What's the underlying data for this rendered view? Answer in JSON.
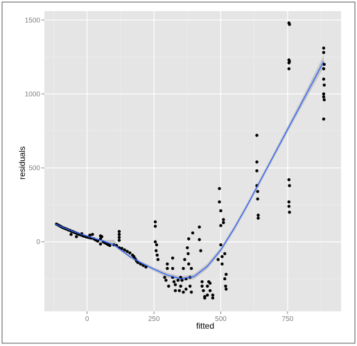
{
  "chart_data": {
    "type": "scatter",
    "title": "",
    "xlabel": "fitted",
    "ylabel": "residuals",
    "xlim": [
      -160,
      950
    ],
    "ylim": [
      -470,
      1560
    ],
    "x_ticks": [
      0,
      250,
      500,
      750
    ],
    "x_tick_labels": [
      "0",
      "250",
      "500",
      "750"
    ],
    "y_ticks": [
      0,
      500,
      1000,
      1500
    ],
    "y_tick_labels": [
      "0",
      "500",
      "1000",
      "1500"
    ],
    "grid": true,
    "legend": "none",
    "colors": {
      "panel": "#e5e5e5",
      "grid": "#ffffff",
      "points": "#000000",
      "smooth_line": "#3366ff",
      "confidence_band": "#999999"
    },
    "points": [
      {
        "x": -115,
        "y": 120
      },
      {
        "x": -110,
        "y": 115
      },
      {
        "x": -105,
        "y": 110
      },
      {
        "x": -100,
        "y": 105
      },
      {
        "x": -95,
        "y": 100
      },
      {
        "x": -90,
        "y": 95
      },
      {
        "x": -85,
        "y": 92
      },
      {
        "x": -80,
        "y": 88
      },
      {
        "x": -75,
        "y": 85
      },
      {
        "x": -70,
        "y": 80
      },
      {
        "x": -65,
        "y": 78
      },
      {
        "x": -60,
        "y": 72
      },
      {
        "x": -55,
        "y": 70
      },
      {
        "x": -50,
        "y": 66
      },
      {
        "x": -45,
        "y": 62
      },
      {
        "x": -40,
        "y": 58
      },
      {
        "x": -35,
        "y": 55
      },
      {
        "x": -30,
        "y": 50
      },
      {
        "x": -25,
        "y": 48
      },
      {
        "x": -20,
        "y": 45
      },
      {
        "x": -15,
        "y": 40
      },
      {
        "x": -10,
        "y": 38
      },
      {
        "x": -5,
        "y": 35
      },
      {
        "x": 0,
        "y": 32
      },
      {
        "x": 5,
        "y": 30
      },
      {
        "x": 10,
        "y": 28
      },
      {
        "x": 15,
        "y": 25
      },
      {
        "x": 20,
        "y": 50
      },
      {
        "x": 25,
        "y": 20
      },
      {
        "x": 30,
        "y": 15
      },
      {
        "x": 35,
        "y": 10
      },
      {
        "x": 40,
        "y": 5
      },
      {
        "x": -60,
        "y": 50
      },
      {
        "x": -40,
        "y": 35
      },
      {
        "x": -20,
        "y": 55
      },
      {
        "x": 10,
        "y": 45
      },
      {
        "x": 50,
        "y": 40
      },
      {
        "x": 50,
        "y": 20
      },
      {
        "x": 50,
        "y": -15
      },
      {
        "x": 55,
        "y": 35
      },
      {
        "x": 60,
        "y": 0
      },
      {
        "x": 65,
        "y": -5
      },
      {
        "x": 70,
        "y": -10
      },
      {
        "x": 75,
        "y": -15
      },
      {
        "x": 80,
        "y": -20
      },
      {
        "x": 85,
        "y": -25
      },
      {
        "x": 100,
        "y": -20
      },
      {
        "x": 110,
        "y": -25
      },
      {
        "x": 120,
        "y": 70
      },
      {
        "x": 120,
        "y": 50
      },
      {
        "x": 120,
        "y": 30
      },
      {
        "x": 120,
        "y": 10
      },
      {
        "x": 120,
        "y": -40
      },
      {
        "x": 130,
        "y": -45
      },
      {
        "x": 140,
        "y": -55
      },
      {
        "x": 150,
        "y": -65
      },
      {
        "x": 160,
        "y": -75
      },
      {
        "x": 170,
        "y": -90
      },
      {
        "x": 175,
        "y": -100
      },
      {
        "x": 180,
        "y": -115
      },
      {
        "x": 185,
        "y": -130
      },
      {
        "x": 190,
        "y": -140
      },
      {
        "x": 200,
        "y": -150
      },
      {
        "x": 210,
        "y": -160
      },
      {
        "x": 220,
        "y": -170
      },
      {
        "x": 255,
        "y": 135
      },
      {
        "x": 255,
        "y": 105
      },
      {
        "x": 255,
        "y": 0
      },
      {
        "x": 260,
        "y": -20
      },
      {
        "x": 258,
        "y": -60
      },
      {
        "x": 262,
        "y": -90
      },
      {
        "x": 265,
        "y": -120
      },
      {
        "x": 290,
        "y": -240
      },
      {
        "x": 295,
        "y": -260
      },
      {
        "x": 300,
        "y": -150
      },
      {
        "x": 300,
        "y": -180
      },
      {
        "x": 305,
        "y": -300
      },
      {
        "x": 320,
        "y": -110
      },
      {
        "x": 320,
        "y": -180
      },
      {
        "x": 320,
        "y": -240
      },
      {
        "x": 325,
        "y": -270
      },
      {
        "x": 330,
        "y": -290
      },
      {
        "x": 330,
        "y": -330
      },
      {
        "x": 340,
        "y": -260
      },
      {
        "x": 345,
        "y": -330
      },
      {
        "x": 350,
        "y": -300
      },
      {
        "x": 350,
        "y": -240
      },
      {
        "x": 355,
        "y": -260
      },
      {
        "x": 360,
        "y": -180
      },
      {
        "x": 360,
        "y": -340
      },
      {
        "x": 365,
        "y": -120
      },
      {
        "x": 370,
        "y": -250
      },
      {
        "x": 370,
        "y": -320
      },
      {
        "x": 375,
        "y": -40
      },
      {
        "x": 378,
        "y": -80
      },
      {
        "x": 380,
        "y": 20
      },
      {
        "x": 380,
        "y": -150
      },
      {
        "x": 385,
        "y": -240
      },
      {
        "x": 385,
        "y": -300
      },
      {
        "x": 390,
        "y": -180
      },
      {
        "x": 390,
        "y": -340
      },
      {
        "x": 395,
        "y": 60
      },
      {
        "x": 420,
        "y": 100
      },
      {
        "x": 420,
        "y": 15
      },
      {
        "x": 425,
        "y": -60
      },
      {
        "x": 430,
        "y": -270
      },
      {
        "x": 430,
        "y": -300
      },
      {
        "x": 435,
        "y": -330
      },
      {
        "x": 440,
        "y": -370
      },
      {
        "x": 440,
        "y": -380
      },
      {
        "x": 450,
        "y": -360
      },
      {
        "x": 450,
        "y": -300
      },
      {
        "x": 455,
        "y": -270
      },
      {
        "x": 460,
        "y": -280
      },
      {
        "x": 460,
        "y": -330
      },
      {
        "x": 470,
        "y": -360
      },
      {
        "x": 470,
        "y": -380
      },
      {
        "x": 490,
        "y": -120
      },
      {
        "x": 495,
        "y": 360
      },
      {
        "x": 495,
        "y": 270
      },
      {
        "x": 500,
        "y": 210
      },
      {
        "x": 500,
        "y": 110
      },
      {
        "x": 500,
        "y": -20
      },
      {
        "x": 505,
        "y": -100
      },
      {
        "x": 505,
        "y": -150
      },
      {
        "x": 510,
        "y": 150
      },
      {
        "x": 510,
        "y": 130
      },
      {
        "x": 515,
        "y": -80
      },
      {
        "x": 515,
        "y": -250
      },
      {
        "x": 518,
        "y": -300
      },
      {
        "x": 520,
        "y": -320
      },
      {
        "x": 520,
        "y": -220
      },
      {
        "x": 635,
        "y": 720
      },
      {
        "x": 635,
        "y": 540
      },
      {
        "x": 635,
        "y": 480
      },
      {
        "x": 635,
        "y": 380
      },
      {
        "x": 638,
        "y": 340
      },
      {
        "x": 638,
        "y": 290
      },
      {
        "x": 640,
        "y": 180
      },
      {
        "x": 640,
        "y": 160
      },
      {
        "x": 755,
        "y": 1480
      },
      {
        "x": 757,
        "y": 1470
      },
      {
        "x": 755,
        "y": 1230
      },
      {
        "x": 757,
        "y": 1220
      },
      {
        "x": 755,
        "y": 1210
      },
      {
        "x": 755,
        "y": 1170
      },
      {
        "x": 755,
        "y": 420
      },
      {
        "x": 757,
        "y": 380
      },
      {
        "x": 755,
        "y": 270
      },
      {
        "x": 755,
        "y": 240
      },
      {
        "x": 757,
        "y": 200
      },
      {
        "x": 885,
        "y": 1310
      },
      {
        "x": 885,
        "y": 1280
      },
      {
        "x": 887,
        "y": 1200
      },
      {
        "x": 885,
        "y": 1170
      },
      {
        "x": 885,
        "y": 1100
      },
      {
        "x": 887,
        "y": 1060
      },
      {
        "x": 885,
        "y": 1000
      },
      {
        "x": 885,
        "y": 980
      },
      {
        "x": 887,
        "y": 960
      },
      {
        "x": 885,
        "y": 830
      }
    ],
    "smooth_curve": [
      {
        "x": -120,
        "y": 120,
        "lo": 112,
        "hi": 128
      },
      {
        "x": -60,
        "y": 75,
        "lo": 69,
        "hi": 81
      },
      {
        "x": 0,
        "y": 38,
        "lo": 32,
        "hi": 44
      },
      {
        "x": 60,
        "y": 5,
        "lo": -1,
        "hi": 11
      },
      {
        "x": 100,
        "y": -20,
        "lo": -27,
        "hi": 13
      },
      {
        "x": 130,
        "y": -60,
        "lo": -70,
        "hi": -50
      },
      {
        "x": 160,
        "y": -100,
        "lo": -110,
        "hi": -90
      },
      {
        "x": 200,
        "y": -140,
        "lo": -150,
        "hi": -130
      },
      {
        "x": 250,
        "y": -185,
        "lo": -197,
        "hi": -173
      },
      {
        "x": 300,
        "y": -225,
        "lo": -240,
        "hi": -210
      },
      {
        "x": 350,
        "y": -250,
        "lo": -266,
        "hi": -234
      },
      {
        "x": 400,
        "y": -235,
        "lo": -252,
        "hi": -218
      },
      {
        "x": 450,
        "y": -165,
        "lo": -183,
        "hi": -147
      },
      {
        "x": 500,
        "y": -55,
        "lo": -72,
        "hi": -38
      },
      {
        "x": 550,
        "y": 90,
        "lo": 73,
        "hi": 107
      },
      {
        "x": 600,
        "y": 250,
        "lo": 233,
        "hi": 267
      },
      {
        "x": 650,
        "y": 420,
        "lo": 403,
        "hi": 437
      },
      {
        "x": 700,
        "y": 590,
        "lo": 572,
        "hi": 608
      },
      {
        "x": 750,
        "y": 760,
        "lo": 740,
        "hi": 780
      },
      {
        "x": 800,
        "y": 930,
        "lo": 905,
        "hi": 955
      },
      {
        "x": 850,
        "y": 1100,
        "lo": 1068,
        "hi": 1132
      },
      {
        "x": 885,
        "y": 1220,
        "lo": 1180,
        "hi": 1260
      }
    ]
  }
}
